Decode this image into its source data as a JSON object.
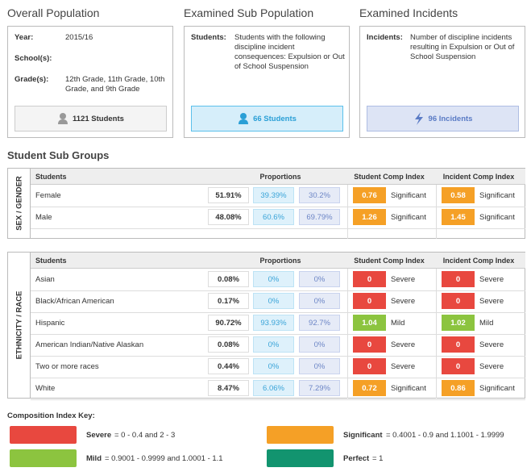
{
  "panels": [
    {
      "title": "Overall Population",
      "fields": [
        {
          "label": "Year:",
          "value": "2015/16"
        },
        {
          "label": "School(s):"
        },
        {
          "label": "Grade(s):",
          "value": "12th Grade, 11th Grade, 10th Grade, and 9th Grade"
        }
      ],
      "footer": "1121 Students"
    },
    {
      "title": "Examined Sub Population",
      "fields": [
        {
          "label": "Students:",
          "value": "Students with the following discipline incident consequences: Expulsion or Out of School Suspension"
        }
      ],
      "footer": "66 Students"
    },
    {
      "title": "Examined Incidents",
      "fields": [
        {
          "label": "Incidents:",
          "value": "Number of discipline incidents resulting in Expulsion or Out of School Suspension"
        }
      ],
      "footer": "96 Incidents"
    }
  ],
  "section_title": "Student Sub Groups",
  "groups": [
    {
      "label": "SEX / GENDER",
      "headers": [
        "Students",
        "Proportions",
        "Student Comp Index",
        "Incident Comp Index"
      ],
      "rows": [
        {
          "name": "Female",
          "proportions": [
            "51.91%",
            "39.39%",
            "30.2%"
          ],
          "student_index": {
            "value": "0.76",
            "level": "Significant"
          },
          "incident_index": {
            "value": "0.58",
            "level": "Significant"
          }
        },
        {
          "name": "Male",
          "proportions": [
            "48.08%",
            "60.6%",
            "69.79%"
          ],
          "student_index": {
            "value": "1.26",
            "level": "Significant"
          },
          "incident_index": {
            "value": "1.45",
            "level": "Significant"
          }
        }
      ]
    },
    {
      "label": "ETHNICITY / RACE",
      "headers": [
        "Students",
        "Proportions",
        "Student Comp Index",
        "Incident Comp Index"
      ],
      "rows": [
        {
          "name": "Asian",
          "proportions": [
            "0.08%",
            "0%",
            "0%"
          ],
          "student_index": {
            "value": "0",
            "level": "Severe"
          },
          "incident_index": {
            "value": "0",
            "level": "Severe"
          }
        },
        {
          "name": "Black/African American",
          "proportions": [
            "0.17%",
            "0%",
            "0%"
          ],
          "student_index": {
            "value": "0",
            "level": "Severe"
          },
          "incident_index": {
            "value": "0",
            "level": "Severe"
          }
        },
        {
          "name": "Hispanic",
          "proportions": [
            "90.72%",
            "93.93%",
            "92.7%"
          ],
          "student_index": {
            "value": "1.04",
            "level": "Mild"
          },
          "incident_index": {
            "value": "1.02",
            "level": "Mild"
          }
        },
        {
          "name": "American Indian/Native Alaskan",
          "proportions": [
            "0.08%",
            "0%",
            "0%"
          ],
          "student_index": {
            "value": "0",
            "level": "Severe"
          },
          "incident_index": {
            "value": "0",
            "level": "Severe"
          }
        },
        {
          "name": "Two or more races",
          "proportions": [
            "0.44%",
            "0%",
            "0%"
          ],
          "student_index": {
            "value": "0",
            "level": "Severe"
          },
          "incident_index": {
            "value": "0",
            "level": "Severe"
          }
        },
        {
          "name": "White",
          "proportions": [
            "8.47%",
            "6.06%",
            "7.29%"
          ],
          "student_index": {
            "value": "0.72",
            "level": "Significant"
          },
          "incident_index": {
            "value": "0.86",
            "level": "Significant"
          }
        }
      ]
    }
  ],
  "key": {
    "title": "Composition Index Key:",
    "items": [
      {
        "name": "Severe",
        "text": "= 0 - 0.4 and 2 - 3",
        "color": "#e8483f"
      },
      {
        "name": "Significant",
        "text": "= 0.4001 - 0.9 and 1.1001 - 1.9999",
        "color": "#f5a026"
      },
      {
        "name": "Mild",
        "text": "= 0.9001 - 0.9999 and 1.0001 - 1.1",
        "color": "#8cc43f"
      },
      {
        "name": "Perfect",
        "text": "= 1",
        "color": "#12946f"
      }
    ]
  }
}
